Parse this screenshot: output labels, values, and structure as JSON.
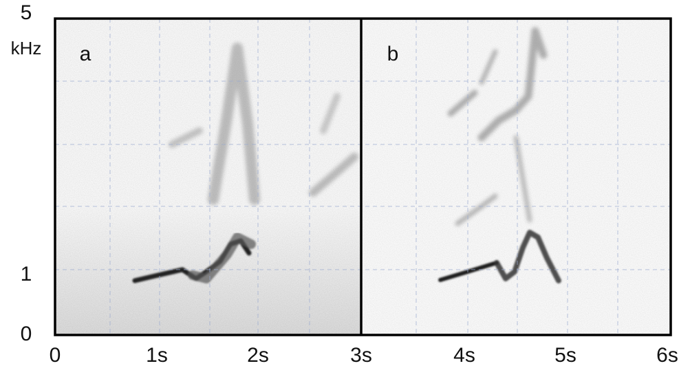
{
  "y_axis": {
    "top_label": "5",
    "unit": "kHz",
    "mid_label": "1",
    "bottom_label": "0"
  },
  "x_axis": {
    "labels": [
      "0",
      "1s",
      "2s",
      "3s",
      "4s",
      "5s",
      "6s"
    ]
  },
  "panels": [
    {
      "label": "a"
    },
    {
      "label": "b"
    }
  ]
}
